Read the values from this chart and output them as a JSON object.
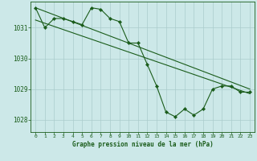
{
  "title": "Graphe pression niveau de la mer (hPa)",
  "bg_color": "#cce8e8",
  "grid_color": "#aacccc",
  "line_color": "#1a5c1a",
  "x_ticks": [
    0,
    1,
    2,
    3,
    4,
    5,
    6,
    7,
    8,
    9,
    10,
    11,
    12,
    13,
    14,
    15,
    16,
    17,
    18,
    19,
    20,
    21,
    22,
    23
  ],
  "y_ticks": [
    1028,
    1029,
    1030,
    1031
  ],
  "ylim": [
    1027.6,
    1031.85
  ],
  "xlim": [
    -0.5,
    23.5
  ],
  "main_x": [
    0,
    1,
    2,
    3,
    4,
    5,
    6,
    7,
    8,
    9,
    10,
    11,
    12,
    13,
    14,
    15,
    16,
    17,
    18,
    19,
    20,
    21,
    22,
    23
  ],
  "main_y": [
    1031.65,
    1031.0,
    1031.3,
    1031.3,
    1031.2,
    1031.1,
    1031.65,
    1031.6,
    1031.3,
    1031.2,
    1030.5,
    1030.5,
    1029.8,
    1029.1,
    1028.25,
    1028.1,
    1028.35,
    1028.15,
    1028.35,
    1029.0,
    1029.1,
    1029.1,
    1028.9,
    1028.9
  ],
  "line2_x": [
    0,
    23
  ],
  "line2_y": [
    1031.65,
    1029.0
  ],
  "line3_x": [
    0,
    23
  ],
  "line3_y": [
    1031.25,
    1028.85
  ]
}
